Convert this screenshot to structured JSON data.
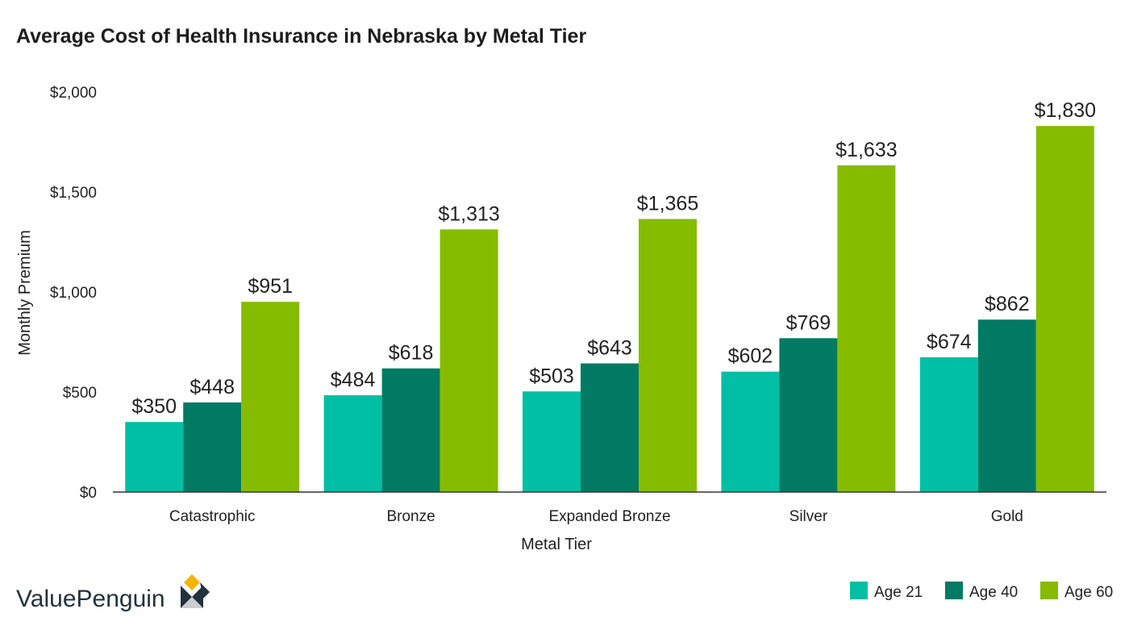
{
  "chart_data": {
    "type": "bar",
    "title": "Average Cost of Health Insurance in Nebraska by Metal Tier",
    "xlabel": "Metal Tier",
    "ylabel": "Monthly Premium",
    "categories": [
      "Catastrophic",
      "Bronze",
      "Expanded Bronze",
      "Silver",
      "Gold"
    ],
    "series": [
      {
        "name": "Age 21",
        "color": "#00bfa5",
        "values": [
          350,
          484,
          503,
          602,
          674
        ],
        "labels": [
          "$350",
          "$484",
          "$503",
          "$602",
          "$674"
        ]
      },
      {
        "name": "Age 40",
        "color": "#007a63",
        "values": [
          448,
          618,
          643,
          769,
          862
        ],
        "labels": [
          "$448",
          "$618",
          "$643",
          "$769",
          "$862"
        ]
      },
      {
        "name": "Age 60",
        "color": "#86bc00",
        "values": [
          951,
          1313,
          1365,
          1633,
          1830
        ],
        "labels": [
          "$951",
          "$1,313",
          "$1,365",
          "$1,633",
          "$1,830"
        ]
      }
    ],
    "ylim": [
      0,
      2000
    ],
    "yticks": [
      0,
      500,
      1000,
      1500,
      2000
    ],
    "ytick_labels": [
      "$0",
      "$500",
      "$1,000",
      "$1,500",
      "$2,000"
    ],
    "grid": false,
    "legend_position": "bottom-right"
  },
  "branding": {
    "logo_text": "ValuePenguin",
    "logo_colors": {
      "text": "#23323d",
      "accent": "#f5b400",
      "dark": "#23323d",
      "light": "#c9cdd1"
    }
  }
}
